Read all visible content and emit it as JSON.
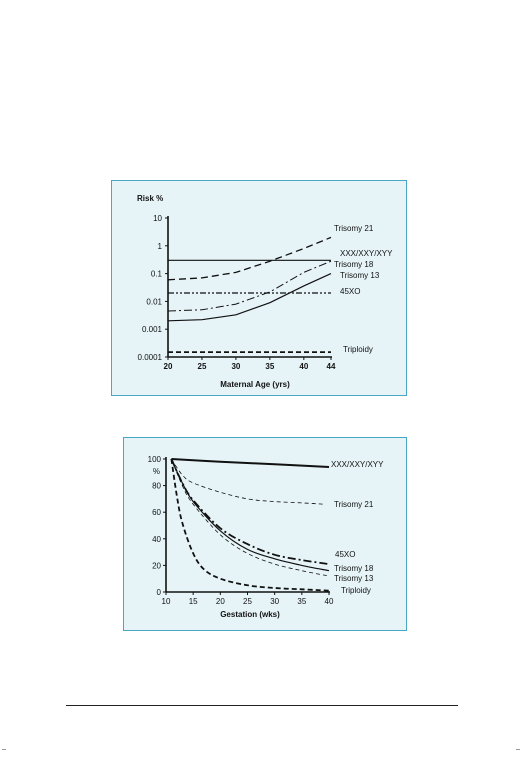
{
  "chart_data": [
    {
      "type": "line",
      "ylabel": "Risk %",
      "xlabel": "Maternal Age (yrs)",
      "x_ticks": [
        20,
        25,
        30,
        35,
        40,
        44
      ],
      "y_ticks": [
        "10",
        "1",
        "0.1",
        "0.01",
        "0.001",
        "0.0001"
      ],
      "y_scale": "log",
      "xlim": [
        20,
        44
      ],
      "ylim": [
        0.0001,
        10
      ],
      "series": [
        {
          "name": "Trisomy 21",
          "style": "dashed",
          "x": [
            20,
            25,
            30,
            35,
            40,
            44
          ],
          "y": [
            0.06,
            0.07,
            0.11,
            0.28,
            0.8,
            2.0
          ]
        },
        {
          "name": "XXX/XXY/XYY",
          "style": "solid",
          "x": [
            20,
            44
          ],
          "y": [
            0.3,
            0.3
          ]
        },
        {
          "name": "Trisomy 18",
          "style": "dashdot",
          "x": [
            20,
            25,
            30,
            35,
            40,
            44
          ],
          "y": [
            0.0045,
            0.005,
            0.008,
            0.022,
            0.11,
            0.28
          ]
        },
        {
          "name": "Trisomy 13",
          "style": "solid",
          "x": [
            20,
            25,
            30,
            35,
            40,
            44
          ],
          "y": [
            0.002,
            0.0022,
            0.0033,
            0.009,
            0.036,
            0.1
          ]
        },
        {
          "name": "45XO",
          "style": "dashdotdot",
          "x": [
            20,
            44
          ],
          "y": [
            0.02,
            0.02
          ]
        },
        {
          "name": "Triploidy",
          "style": "dashed-thick",
          "x": [
            20,
            44
          ],
          "y": [
            0.00015,
            0.00015
          ]
        }
      ],
      "labels": {
        "trisomy21": "Trisomy 21",
        "xxx": "XXX/XXY/XYY",
        "trisomy18": "Trisomy 18",
        "trisomy13": "Trisomy 13",
        "xo": "45XO",
        "triploidy": "Triploidy"
      },
      "grid": false
    },
    {
      "type": "line",
      "ylabel": "%",
      "xlabel": "Gestation (wks)",
      "x_ticks": [
        10,
        15,
        20,
        25,
        30,
        35,
        40
      ],
      "y_ticks": [
        0,
        20,
        40,
        60,
        80,
        100
      ],
      "xlim": [
        10,
        40
      ],
      "ylim": [
        0,
        100
      ],
      "series": [
        {
          "name": "XXX/XXY/XYY",
          "style": "solid-thick",
          "x": [
            11,
            20,
            30,
            40
          ],
          "y": [
            100,
            98,
            96,
            94
          ]
        },
        {
          "name": "Trisomy 21",
          "style": "dashed-thin",
          "x": [
            11,
            13,
            15,
            20,
            25,
            30,
            35,
            39
          ],
          "y": [
            100,
            88,
            82,
            75,
            70,
            68,
            67,
            66
          ]
        },
        {
          "name": "45XO",
          "style": "dashdot-thick",
          "x": [
            11,
            13,
            15,
            20,
            25,
            30,
            35,
            40
          ],
          "y": [
            100,
            82,
            69,
            48,
            36,
            28,
            24,
            21
          ]
        },
        {
          "name": "Trisomy 18",
          "style": "solid",
          "x": [
            11,
            13,
            15,
            20,
            25,
            30,
            35,
            40
          ],
          "y": [
            100,
            82,
            68,
            46,
            32,
            25,
            20,
            16
          ]
        },
        {
          "name": "Trisomy 13",
          "style": "dashed-thin",
          "x": [
            11,
            13,
            15,
            20,
            25,
            30,
            35,
            40
          ],
          "y": [
            100,
            80,
            66,
            43,
            29,
            21,
            16,
            12
          ]
        },
        {
          "name": "Triploidy",
          "style": "dashed-thick",
          "x": [
            11,
            12,
            13,
            15,
            17,
            20,
            25,
            30,
            35,
            40
          ],
          "y": [
            100,
            72,
            52,
            29,
            17,
            10,
            5,
            3,
            2,
            1
          ]
        }
      ],
      "labels": {
        "xxx": "XXX/XXY/XYY",
        "trisomy21": "Trisomy 21",
        "xo": "45XO",
        "trisomy18": "Trisomy 18",
        "trisomy13": "Trisomy 13",
        "triploidy": "Triploidy"
      },
      "grid": false
    }
  ]
}
